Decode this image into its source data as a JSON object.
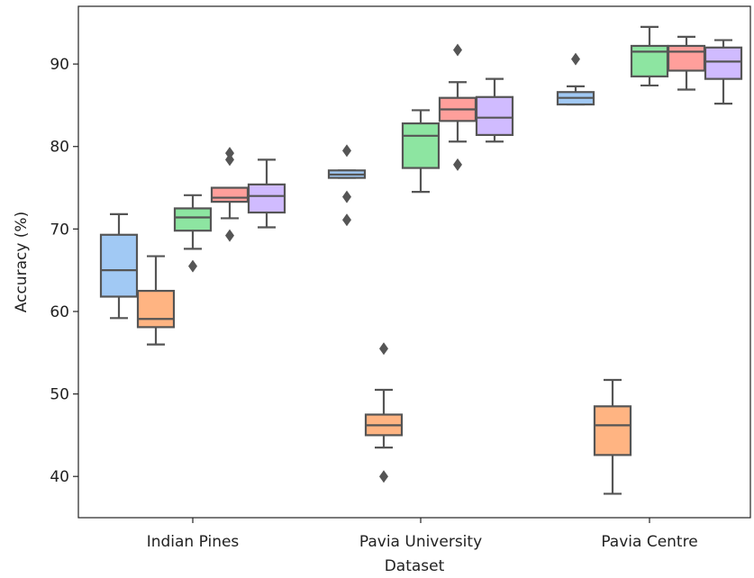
{
  "chart_data": {
    "type": "box",
    "xlabel": "Dataset",
    "ylabel": "Accuracy (%)",
    "ylim": [
      35,
      97
    ],
    "yticks": [
      40,
      50,
      60,
      70,
      80,
      90
    ],
    "grid": false,
    "categories": [
      "Indian Pines",
      "Pavia University",
      "Pavia Centre"
    ],
    "series": [
      {
        "color": "#a1c9f4",
        "boxes": [
          {
            "whisker_low": 59.2,
            "q1": 61.8,
            "median": 65.0,
            "q3": 69.3,
            "whisker_high": 71.8,
            "outliers": []
          },
          {
            "whisker_low": 76.2,
            "q1": 76.2,
            "median": 76.6,
            "q3": 77.1,
            "whisker_high": 77.1,
            "outliers": [
              79.5,
              73.9,
              71.1
            ]
          },
          {
            "whisker_low": 85.1,
            "q1": 85.1,
            "median": 85.9,
            "q3": 86.6,
            "whisker_high": 87.3,
            "outliers": [
              90.6
            ]
          }
        ]
      },
      {
        "color": "#ffb482",
        "boxes": [
          {
            "whisker_low": 56.0,
            "q1": 58.1,
            "median": 59.1,
            "q3": 62.5,
            "whisker_high": 66.7,
            "outliers": []
          },
          {
            "whisker_low": 43.5,
            "q1": 45.0,
            "median": 46.2,
            "q3": 47.5,
            "whisker_high": 50.5,
            "outliers": [
              55.5,
              40.0
            ]
          },
          {
            "whisker_low": 37.9,
            "q1": 42.6,
            "median": 46.2,
            "q3": 48.5,
            "whisker_high": 51.7,
            "outliers": []
          }
        ]
      },
      {
        "color": "#8de5a1",
        "boxes": [
          {
            "whisker_low": 67.6,
            "q1": 69.8,
            "median": 71.4,
            "q3": 72.5,
            "whisker_high": 74.1,
            "outliers": [
              65.5
            ]
          },
          {
            "whisker_low": 74.5,
            "q1": 77.4,
            "median": 81.3,
            "q3": 82.8,
            "whisker_high": 84.4,
            "outliers": []
          },
          {
            "whisker_low": 87.4,
            "q1": 88.5,
            "median": 91.5,
            "q3": 92.2,
            "whisker_high": 94.5,
            "outliers": []
          }
        ]
      },
      {
        "color": "#ff9f9b",
        "boxes": [
          {
            "whisker_low": 71.3,
            "q1": 73.3,
            "median": 73.8,
            "q3": 75.0,
            "whisker_high": 75.0,
            "outliers": [
              79.2,
              78.4,
              69.2
            ]
          },
          {
            "whisker_low": 80.6,
            "q1": 83.1,
            "median": 84.5,
            "q3": 85.9,
            "whisker_high": 87.8,
            "outliers": [
              91.7,
              77.8
            ]
          },
          {
            "whisker_low": 86.9,
            "q1": 89.2,
            "median": 91.5,
            "q3": 92.2,
            "whisker_high": 93.3,
            "outliers": []
          }
        ]
      },
      {
        "color": "#d0bbff",
        "boxes": [
          {
            "whisker_low": 70.2,
            "q1": 72.0,
            "median": 74.0,
            "q3": 75.4,
            "whisker_high": 78.4,
            "outliers": []
          },
          {
            "whisker_low": 80.6,
            "q1": 81.4,
            "median": 83.5,
            "q3": 86.0,
            "whisker_high": 88.2,
            "outliers": []
          },
          {
            "whisker_low": 85.2,
            "q1": 88.2,
            "median": 90.3,
            "q3": 92.0,
            "whisker_high": 92.9,
            "outliers": []
          }
        ]
      }
    ]
  }
}
